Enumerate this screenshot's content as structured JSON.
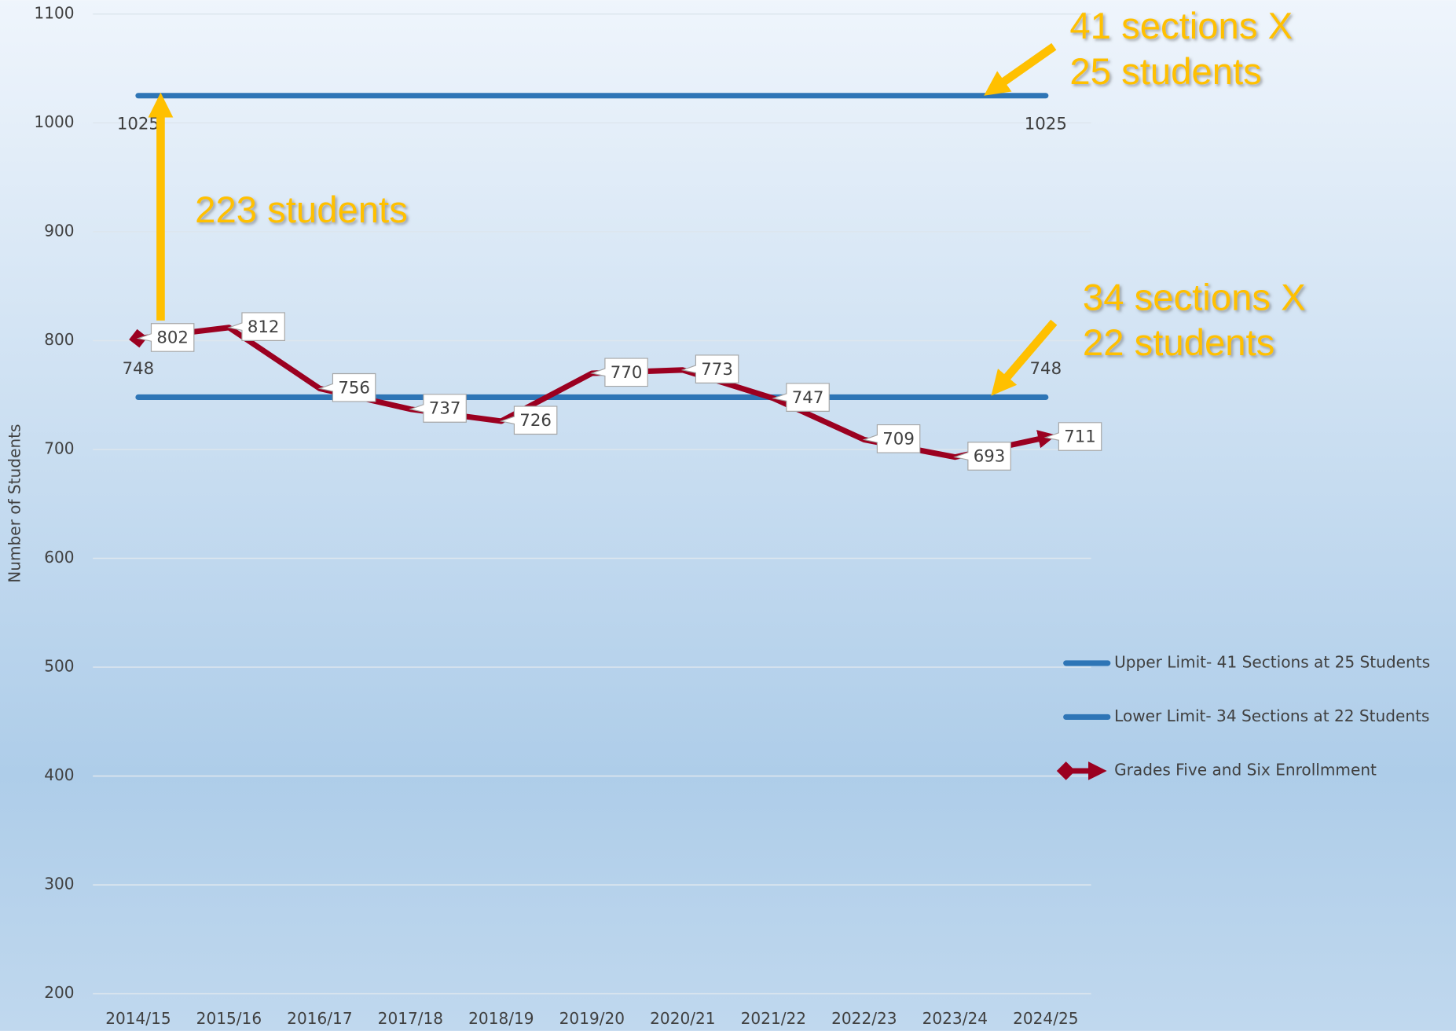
{
  "chart_data": {
    "type": "line",
    "y_label": "Number of Students",
    "categories": [
      "2014/15",
      "2015/16",
      "2016/17",
      "2017/18",
      "2018/19",
      "2019/20",
      "2020/21",
      "2021/22",
      "2022/23",
      "2023/24",
      "2024/25"
    ],
    "series": [
      {
        "name": "Upper Limit- 41 Sections at 25 Students",
        "color": "#2e75b6",
        "values": [
          1025,
          1025,
          1025,
          1025,
          1025,
          1025,
          1025,
          1025,
          1025,
          1025,
          1025
        ]
      },
      {
        "name": "Lower Limit- 34 Sections at 22 Students",
        "color": "#2e75b6",
        "values": [
          748,
          748,
          748,
          748,
          748,
          748,
          748,
          748,
          748,
          748,
          748
        ]
      },
      {
        "name": "Grades Five and Six Enrollmment",
        "color": "#9b0020",
        "values": [
          802,
          812,
          756,
          737,
          726,
          770,
          773,
          747,
          709,
          693,
          711
        ]
      }
    ],
    "ylim": [
      200,
      1100
    ],
    "yticks": [
      200,
      300,
      400,
      500,
      600,
      700,
      800,
      900,
      1000,
      1100
    ],
    "grid": true,
    "legend": "right",
    "annotations": [
      "41 sections X",
      "25 students",
      "223 students",
      "34 sections X",
      "22 students"
    ]
  }
}
